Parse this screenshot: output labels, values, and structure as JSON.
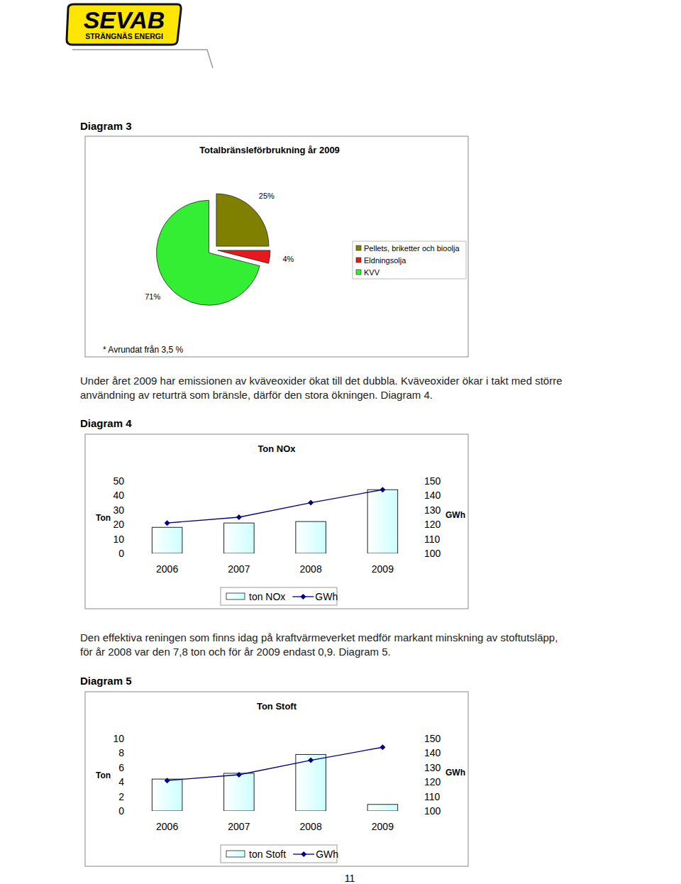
{
  "page": {
    "logo": {
      "name": "SEVAB",
      "subtitle": "STRÄNGNÄS ENERGI"
    },
    "headings": [
      "Diagram 3",
      "Diagram 4",
      "Diagram 5"
    ],
    "paragraphs": [
      "Under året 2009 har emissionen av kväveoxider ökat till det dubbla. Kväveoxider ökar i takt med större användning av returträ som bränsle, därför den stora ökningen. Diagram 4.",
      "Den effektiva reningen som finns idag på kraftvärmeverket medför markant minskning av stoftutsläpp, för år 2008 var den 7,8 ton och för år 2009 endast 0,9. Diagram 5."
    ],
    "page_number": "11"
  },
  "chart_data": [
    {
      "type": "pie",
      "title": "Totalbränsleförbrukning år 2009",
      "categories": [
        "Pellets, briketter och bioolja",
        "Eldningsolja",
        "KVV"
      ],
      "values": [
        25,
        4,
        71
      ],
      "value_labels": [
        "25%",
        "4%",
        "71%"
      ],
      "data_labels": true,
      "colors": [
        "#808000",
        "#e8191c",
        "#33ee33"
      ],
      "legend": "right",
      "annotations": [
        "* Avrundat från 3,5 %"
      ]
    },
    {
      "type": "bar",
      "title": "Ton NOx",
      "categories": [
        "2006",
        "2007",
        "2008",
        "2009"
      ],
      "series": [
        {
          "name": "ton NOx",
          "type": "bar",
          "color": "#ccffff",
          "values": [
            18,
            21,
            22,
            44
          ]
        },
        {
          "name": "GWh",
          "type": "line",
          "axis": "y2",
          "color": "#000080",
          "marker": "diamond",
          "values": [
            121,
            125,
            135,
            144
          ]
        }
      ],
      "y_label": "Ton",
      "y2_label": "GWh",
      "ylim": [
        0,
        50
      ],
      "yticks": [
        0,
        10,
        20,
        30,
        40,
        50
      ],
      "y2lim": [
        100,
        150
      ],
      "y2ticks": [
        100,
        110,
        120,
        130,
        140,
        150
      ],
      "legend": "bottom",
      "grid": false
    },
    {
      "type": "bar",
      "title": "Ton Stoft",
      "categories": [
        "2006",
        "2007",
        "2008",
        "2009"
      ],
      "series": [
        {
          "name": "ton Stoft",
          "type": "bar",
          "color": "#ccffff",
          "values": [
            4.4,
            5.2,
            7.8,
            0.9
          ]
        },
        {
          "name": "GWh",
          "type": "line",
          "axis": "y2",
          "color": "#000080",
          "marker": "diamond",
          "values": [
            121,
            125,
            135,
            144
          ]
        }
      ],
      "y_label": "Ton",
      "y2_label": "GWh",
      "ylim": [
        0,
        10
      ],
      "yticks": [
        0,
        2,
        4,
        6,
        8,
        10
      ],
      "y2lim": [
        100,
        150
      ],
      "y2ticks": [
        100,
        110,
        120,
        130,
        140,
        150
      ],
      "legend": "bottom",
      "grid": false
    }
  ]
}
